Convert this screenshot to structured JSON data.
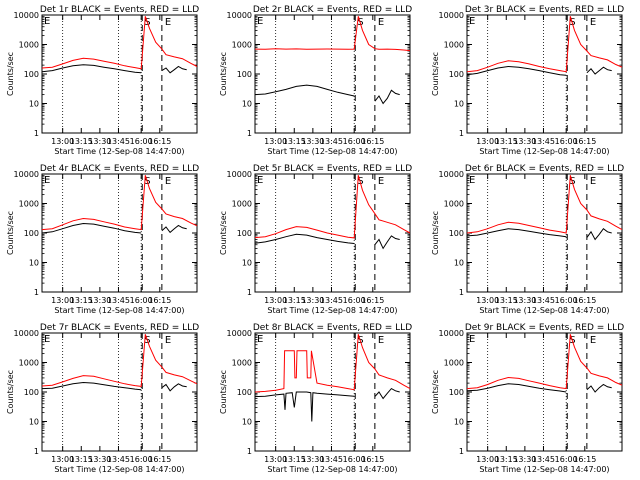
{
  "colors": {
    "events": "#000000",
    "lld": "#ff0000",
    "axis": "#000000",
    "background": "#ffffff"
  },
  "shared": {
    "ylabel": "Counts/sec",
    "xlabel": "Start Time (12-Sep-08 14:47:00)",
    "marker_s": "S",
    "marker_e": "E",
    "x_tick_labels": [
      "13:00",
      "13:15",
      "13:30",
      "13:45",
      "16:00",
      "16:15"
    ],
    "y_tick_labels": [
      "1",
      "10",
      "100",
      "1000",
      "10000"
    ]
  },
  "chart_data": [
    {
      "type": "line",
      "title": "Det 1r BLACK = Events, RED = LLD",
      "xlabel": "Start Time (12-Sep-08 14:47:00)",
      "ylabel": "Counts/sec",
      "ylim": [
        1,
        10000
      ],
      "y_scale": "log",
      "x_ticks": [
        "13:00",
        "13:15",
        "13:30",
        "13:45",
        "16:00",
        "16:15"
      ],
      "markers": [
        "S",
        "E"
      ],
      "series": [
        {
          "name": "Events",
          "color": "#000000",
          "x": [
            0,
            5,
            10,
            15,
            20,
            25,
            30,
            35,
            40,
            45,
            48,
            49,
            55,
            58,
            60,
            62,
            64,
            66,
            68,
            70
          ],
          "values": [
            120,
            130,
            160,
            190,
            205,
            195,
            170,
            150,
            130,
            115,
            110,
            null,
            null,
            130,
            160,
            110,
            140,
            180,
            150,
            140
          ]
        },
        {
          "name": "LLD",
          "color": "#ff0000",
          "x": [
            0,
            5,
            10,
            15,
            20,
            25,
            30,
            35,
            40,
            45,
            48,
            50,
            52,
            55,
            58,
            60,
            64,
            68,
            72,
            75
          ],
          "values": [
            160,
            170,
            220,
            290,
            340,
            320,
            270,
            230,
            190,
            165,
            150,
            9000,
            3500,
            1200,
            700,
            450,
            380,
            330,
            230,
            180
          ]
        }
      ]
    },
    {
      "type": "line",
      "title": "Det 2r BLACK = Events, RED = LLD",
      "xlabel": "Start Time (12-Sep-08 14:47:00)",
      "ylabel": "Counts/sec",
      "ylim": [
        1,
        10000
      ],
      "y_scale": "log",
      "x_ticks": [
        "13:00",
        "13:15",
        "13:30",
        "13:45",
        "16:00",
        "16:15"
      ],
      "markers": [
        "S",
        "E"
      ],
      "series": [
        {
          "name": "Events",
          "color": "#000000",
          "x": [
            0,
            5,
            10,
            15,
            20,
            25,
            30,
            35,
            40,
            45,
            48,
            49,
            58,
            60,
            62,
            64,
            66,
            68,
            70
          ],
          "values": [
            20,
            21,
            25,
            30,
            38,
            42,
            38,
            30,
            24,
            20,
            18,
            null,
            12,
            18,
            10,
            15,
            28,
            22,
            20
          ]
        },
        {
          "name": "LLD",
          "color": "#ff0000",
          "x": [
            0,
            5,
            10,
            15,
            20,
            25,
            30,
            35,
            40,
            45,
            48,
            50,
            52,
            55,
            58,
            60,
            64,
            68,
            72,
            75
          ],
          "values": [
            700,
            690,
            720,
            700,
            710,
            690,
            700,
            705,
            700,
            690,
            700,
            9000,
            3000,
            1000,
            720,
            690,
            700,
            680,
            650,
            620
          ]
        }
      ]
    },
    {
      "type": "line",
      "title": "Det 3r BLACK = Events, RED = LLD",
      "xlabel": "Start Time (12-Sep-08 14:47:00)",
      "ylabel": "Counts/sec",
      "ylim": [
        1,
        10000
      ],
      "y_scale": "log",
      "x_ticks": [
        "13:00",
        "13:15",
        "13:30",
        "13:45",
        "16:00",
        "16:15"
      ],
      "markers": [
        "S",
        "E"
      ],
      "series": [
        {
          "name": "Events",
          "color": "#000000",
          "x": [
            0,
            5,
            10,
            15,
            20,
            25,
            30,
            35,
            40,
            45,
            48,
            49,
            58,
            60,
            62,
            64,
            66,
            68,
            70
          ],
          "values": [
            95,
            105,
            130,
            160,
            180,
            170,
            150,
            130,
            110,
            95,
            90,
            null,
            110,
            150,
            100,
            130,
            170,
            140,
            130
          ]
        },
        {
          "name": "LLD",
          "color": "#ff0000",
          "x": [
            0,
            5,
            10,
            15,
            20,
            25,
            30,
            35,
            40,
            45,
            48,
            50,
            52,
            55,
            58,
            60,
            64,
            68,
            72,
            75
          ],
          "values": [
            120,
            130,
            170,
            230,
            280,
            260,
            220,
            180,
            150,
            130,
            120,
            9000,
            3000,
            1000,
            600,
            420,
            350,
            300,
            210,
            170
          ]
        }
      ]
    },
    {
      "type": "line",
      "title": "Det 4r BLACK = Events, RED = LLD",
      "xlabel": "Start Time (12-Sep-08 14:47:00)",
      "ylabel": "Counts/sec",
      "ylim": [
        1,
        10000
      ],
      "y_scale": "log",
      "x_ticks": [
        "13:00",
        "13:15",
        "13:30",
        "13:45",
        "16:00",
        "16:15"
      ],
      "markers": [
        "S",
        "E"
      ],
      "series": [
        {
          "name": "Events",
          "color": "#000000",
          "x": [
            0,
            5,
            10,
            15,
            20,
            25,
            30,
            35,
            40,
            45,
            48,
            49,
            58,
            60,
            62,
            64,
            66,
            68,
            70
          ],
          "values": [
            100,
            110,
            140,
            180,
            210,
            200,
            170,
            145,
            120,
            105,
            100,
            null,
            120,
            160,
            105,
            140,
            180,
            150,
            140
          ]
        },
        {
          "name": "LLD",
          "color": "#ff0000",
          "x": [
            0,
            5,
            10,
            15,
            20,
            25,
            30,
            35,
            40,
            45,
            48,
            50,
            52,
            55,
            58,
            60,
            64,
            68,
            72,
            75
          ],
          "values": [
            130,
            140,
            190,
            260,
            310,
            290,
            240,
            200,
            160,
            140,
            130,
            9000,
            3200,
            1100,
            650,
            440,
            360,
            310,
            220,
            175
          ]
        }
      ]
    },
    {
      "type": "line",
      "title": "Det 5r BLACK = Events, RED = LLD",
      "xlabel": "Start Time (12-Sep-08 14:47:00)",
      "ylabel": "Counts/sec",
      "ylim": [
        1,
        10000
      ],
      "y_scale": "log",
      "x_ticks": [
        "13:00",
        "13:15",
        "13:30",
        "13:45",
        "16:00",
        "16:15"
      ],
      "markers": [
        "S",
        "E"
      ],
      "series": [
        {
          "name": "Events",
          "color": "#000000",
          "x": [
            0,
            5,
            10,
            15,
            20,
            25,
            30,
            35,
            40,
            45,
            48,
            49,
            58,
            60,
            62,
            64,
            66,
            68,
            70
          ],
          "values": [
            45,
            50,
            60,
            75,
            90,
            85,
            70,
            60,
            52,
            46,
            44,
            null,
            40,
            60,
            30,
            50,
            80,
            65,
            60
          ]
        },
        {
          "name": "LLD",
          "color": "#ff0000",
          "x": [
            0,
            5,
            10,
            15,
            20,
            25,
            30,
            35,
            40,
            45,
            48,
            50,
            52,
            55,
            58,
            60,
            64,
            68,
            72,
            75
          ],
          "values": [
            70,
            75,
            95,
            130,
            165,
            155,
            125,
            100,
            85,
            72,
            68,
            9000,
            2800,
            900,
            450,
            280,
            230,
            190,
            130,
            100
          ]
        }
      ]
    },
    {
      "type": "line",
      "title": "Det 6r BLACK = Events, RED = LLD",
      "xlabel": "Start Time (12-Sep-08 14:47:00)",
      "ylabel": "Counts/sec",
      "ylim": [
        1,
        10000
      ],
      "y_scale": "log",
      "x_ticks": [
        "13:00",
        "13:15",
        "13:30",
        "13:45",
        "16:00",
        "16:15"
      ],
      "markers": [
        "S",
        "E"
      ],
      "series": [
        {
          "name": "Events",
          "color": "#000000",
          "x": [
            0,
            5,
            10,
            15,
            20,
            25,
            30,
            35,
            40,
            45,
            48,
            49,
            58,
            60,
            62,
            64,
            66,
            68,
            70
          ],
          "values": [
            80,
            85,
            100,
            120,
            140,
            130,
            115,
            100,
            88,
            80,
            75,
            null,
            70,
            110,
            60,
            90,
            140,
            110,
            100
          ]
        },
        {
          "name": "LLD",
          "color": "#ff0000",
          "x": [
            0,
            5,
            10,
            15,
            20,
            25,
            30,
            35,
            40,
            45,
            48,
            50,
            52,
            55,
            58,
            60,
            64,
            68,
            72,
            75
          ],
          "values": [
            100,
            110,
            140,
            190,
            230,
            215,
            180,
            150,
            125,
            110,
            100,
            9000,
            3000,
            1000,
            600,
            380,
            300,
            250,
            170,
            130
          ]
        }
      ]
    },
    {
      "type": "line",
      "title": "Det 7r BLACK = Events, RED = LLD",
      "xlabel": "Start Time (12-Sep-08 14:47:00)",
      "ylabel": "Counts/sec",
      "ylim": [
        1,
        10000
      ],
      "y_scale": "log",
      "x_ticks": [
        "13:00",
        "13:15",
        "13:30",
        "13:45",
        "16:00",
        "16:15"
      ],
      "markers": [
        "S",
        "E"
      ],
      "series": [
        {
          "name": "Events",
          "color": "#000000",
          "x": [
            0,
            5,
            10,
            15,
            20,
            25,
            30,
            35,
            40,
            45,
            48,
            49,
            58,
            60,
            62,
            64,
            66,
            68,
            70
          ],
          "values": [
            130,
            135,
            160,
            190,
            210,
            200,
            175,
            155,
            140,
            125,
            120,
            null,
            140,
            180,
            110,
            150,
            190,
            160,
            150
          ]
        },
        {
          "name": "LLD",
          "color": "#ff0000",
          "x": [
            0,
            5,
            10,
            15,
            20,
            25,
            30,
            35,
            40,
            45,
            48,
            50,
            52,
            55,
            58,
            60,
            64,
            68,
            72,
            75
          ],
          "values": [
            160,
            170,
            220,
            290,
            360,
            340,
            280,
            230,
            190,
            165,
            155,
            9000,
            3500,
            1200,
            700,
            460,
            380,
            330,
            240,
            190
          ]
        }
      ]
    },
    {
      "type": "line",
      "title": "Det 8r BLACK = Events, RED = LLD",
      "xlabel": "Start Time (12-Sep-08 14:47:00)",
      "ylabel": "Counts/sec",
      "ylim": [
        1,
        10000
      ],
      "y_scale": "log",
      "x_ticks": [
        "13:00",
        "13:15",
        "13:30",
        "13:45",
        "16:00",
        "16:15"
      ],
      "markers": [
        "S",
        "E"
      ],
      "series": [
        {
          "name": "Events",
          "color": "#000000",
          "x": [
            0,
            5,
            10,
            14,
            14.5,
            15,
            18,
            19,
            20,
            25,
            27,
            27.5,
            28,
            30,
            35,
            40,
            45,
            48,
            49,
            58,
            60,
            62,
            64,
            66,
            68,
            70
          ],
          "values": [
            70,
            72,
            80,
            85,
            25,
            90,
            95,
            30,
            100,
            100,
            95,
            10,
            95,
            90,
            85,
            80,
            75,
            72,
            null,
            70,
            100,
            60,
            90,
            130,
            110,
            100
          ]
        },
        {
          "name": "LLD",
          "color": "#ff0000",
          "x": [
            0,
            5,
            10,
            14,
            14.3,
            19,
            19.3,
            20,
            20.3,
            25,
            25.3,
            27,
            27.3,
            30,
            35,
            40,
            45,
            48,
            50,
            52,
            55,
            58,
            60,
            64,
            68,
            72,
            75
          ],
          "values": [
            100,
            105,
            115,
            130,
            2500,
            2500,
            300,
            300,
            2500,
            2500,
            300,
            300,
            2500,
            200,
            170,
            150,
            130,
            120,
            9000,
            3200,
            1000,
            600,
            380,
            300,
            250,
            170,
            130
          ]
        }
      ]
    },
    {
      "type": "line",
      "title": "Det 9r BLACK = Events, RED = LLD",
      "xlabel": "Start Time (12-Sep-08 14:47:00)",
      "ylabel": "Counts/sec",
      "ylim": [
        1,
        10000
      ],
      "y_scale": "log",
      "x_ticks": [
        "13:00",
        "13:15",
        "13:30",
        "13:45",
        "16:00",
        "16:15"
      ],
      "markers": [
        "S",
        "E"
      ],
      "series": [
        {
          "name": "Events",
          "color": "#000000",
          "x": [
            0,
            5,
            10,
            15,
            20,
            25,
            30,
            35,
            40,
            45,
            48,
            49,
            58,
            60,
            62,
            64,
            66,
            68,
            70
          ],
          "values": [
            110,
            115,
            135,
            165,
            190,
            180,
            155,
            135,
            120,
            108,
            100,
            null,
            120,
            160,
            100,
            140,
            180,
            150,
            140
          ]
        },
        {
          "name": "LLD",
          "color": "#ff0000",
          "x": [
            0,
            5,
            10,
            15,
            20,
            25,
            30,
            35,
            40,
            45,
            48,
            50,
            52,
            55,
            58,
            60,
            64,
            68,
            72,
            75
          ],
          "values": [
            130,
            140,
            180,
            250,
            310,
            290,
            240,
            200,
            165,
            140,
            130,
            9000,
            3300,
            1100,
            650,
            430,
            350,
            300,
            210,
            170
          ]
        }
      ]
    }
  ]
}
